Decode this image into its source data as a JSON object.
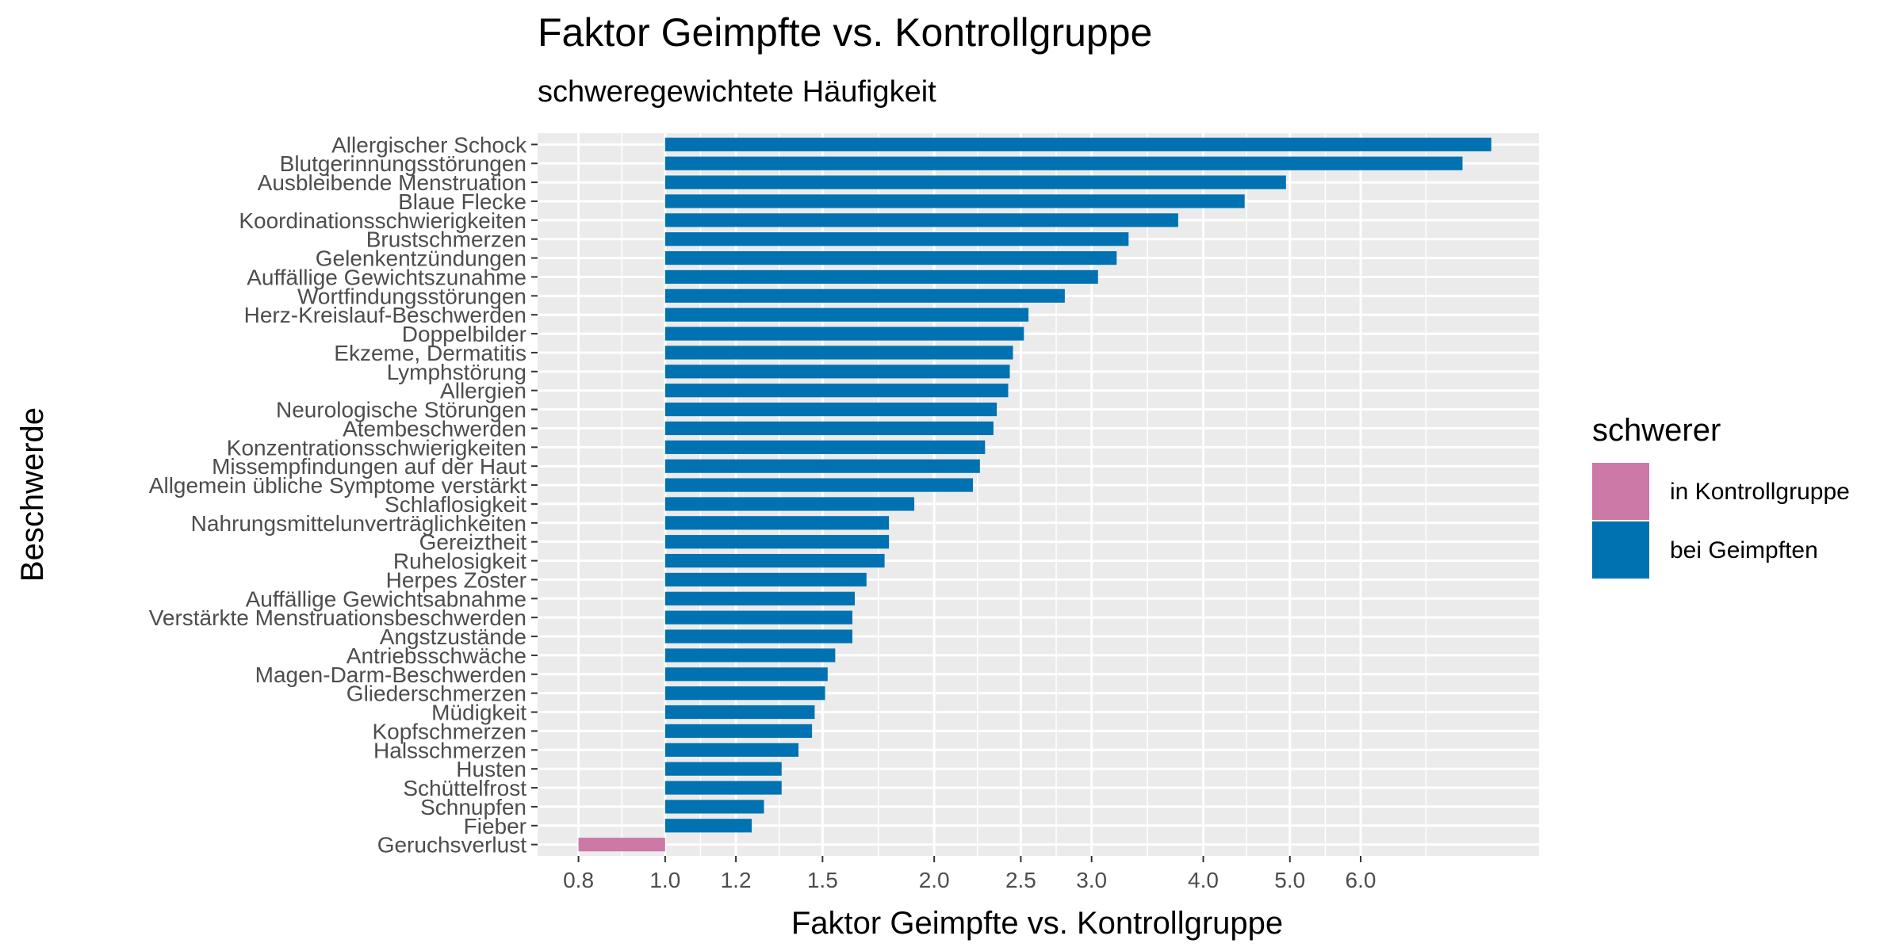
{
  "chart_data": {
    "type": "bar",
    "orientation": "horizontal",
    "title": "Faktor Geimpfte vs. Kontrollgruppe",
    "subtitle": "schweregewichtete Häufigkeit",
    "xlabel": "Faktor Geimpfte vs. Kontrollgruppe",
    "ylabel": "Beschwerde",
    "x_scale": "log",
    "x_baseline": 1.0,
    "xlim": [
      0.72,
      9.5
    ],
    "x_ticks": [
      "0.8",
      "1.0",
      "1.2",
      "1.5",
      "2.0",
      "2.5",
      "3.0",
      "4.0",
      "5.0",
      "6.0"
    ],
    "grid": true,
    "legend_position": "right",
    "legend": {
      "title": "schwerer",
      "entries": [
        {
          "label": "in Kontrollgruppe",
          "color": "#CC79A7"
        },
        {
          "label": "bei Geimpften",
          "color": "#0072B2"
        }
      ]
    },
    "colors": {
      "panel": "#EBEBEB",
      "grid": "#FFFFFF",
      "kontroll": "#CC79A7",
      "geimpft": "#0072B2"
    },
    "categories": [
      "Allergischer Schock",
      "Blutgerinnungsstörungen",
      "Ausbleibende Menstruation",
      "Blaue Flecke",
      "Koordinationsschwierigkeiten",
      "Brustschmerzen",
      "Gelenkentzündungen",
      "Auffällige Gewichtszunahme",
      "Wortfindungsstörungen",
      "Herz-Kreislauf-Beschwerden",
      "Doppelbilder",
      "Ekzeme, Dermatitis",
      "Lymphstörung",
      "Allergien",
      "Neurologische Störungen",
      "Atembeschwerden",
      "Konzentrationsschwierigkeiten",
      "Missempfindungen auf der Haut",
      "Allgemein übliche Symptome verstärkt",
      "Schlaflosigkeit",
      "Nahrungsmittelunverträglichkeiten",
      "Gereiztheit",
      "Ruhelosigkeit",
      "Herpes Zoster",
      "Auffällige Gewichtsabnahme",
      "Verstärkte Menstruationsbeschwerden",
      "Angstzustände",
      "Antriebsschwäche",
      "Magen-Darm-Beschwerden",
      "Gliederschmerzen",
      "Müdigkeit",
      "Kopfschmerzen",
      "Halsschmerzen",
      "Husten",
      "Schüttelfrost",
      "Schnupfen",
      "Fieber",
      "Geruchsverlust"
    ],
    "values": [
      8.4,
      7.8,
      4.95,
      4.45,
      3.75,
      3.3,
      3.2,
      3.05,
      2.8,
      2.55,
      2.52,
      2.45,
      2.43,
      2.42,
      2.35,
      2.33,
      2.28,
      2.25,
      2.21,
      1.9,
      1.78,
      1.78,
      1.76,
      1.68,
      1.63,
      1.62,
      1.62,
      1.55,
      1.52,
      1.51,
      1.47,
      1.46,
      1.41,
      1.35,
      1.35,
      1.29,
      1.25,
      0.8
    ],
    "groups": [
      "bei Geimpften",
      "bei Geimpften",
      "bei Geimpften",
      "bei Geimpften",
      "bei Geimpften",
      "bei Geimpften",
      "bei Geimpften",
      "bei Geimpften",
      "bei Geimpften",
      "bei Geimpften",
      "bei Geimpften",
      "bei Geimpften",
      "bei Geimpften",
      "bei Geimpften",
      "bei Geimpften",
      "bei Geimpften",
      "bei Geimpften",
      "bei Geimpften",
      "bei Geimpften",
      "bei Geimpften",
      "bei Geimpften",
      "bei Geimpften",
      "bei Geimpften",
      "bei Geimpften",
      "bei Geimpften",
      "bei Geimpften",
      "bei Geimpften",
      "bei Geimpften",
      "bei Geimpften",
      "bei Geimpften",
      "bei Geimpften",
      "bei Geimpften",
      "bei Geimpften",
      "bei Geimpften",
      "bei Geimpften",
      "bei Geimpften",
      "bei Geimpften",
      "in Kontrollgruppe"
    ]
  }
}
